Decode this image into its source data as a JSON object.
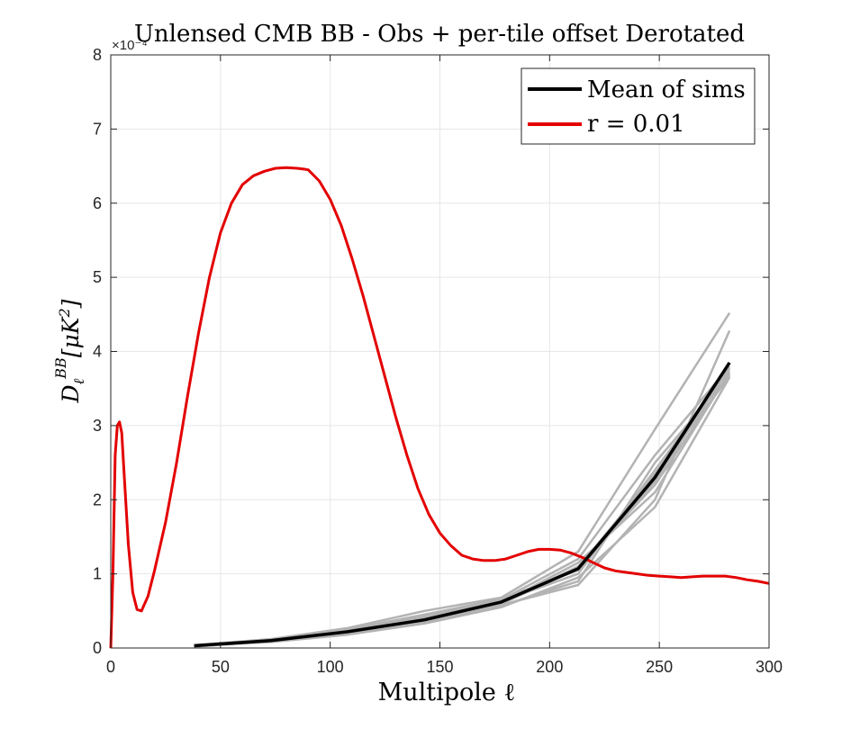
{
  "chart_data": {
    "type": "line",
    "title": "Unlensed CMB BB - Obs + per-tile offset Derotated",
    "xlabel": "Multipole ℓ",
    "ylabel": "Dℓ^BB [μK²]",
    "ylabel_main": "D",
    "ylabel_sub": "ℓ",
    "ylabel_sup": "BB",
    "ylabel_unit": "[μK",
    "ylabel_unit_sup": "2",
    "ylabel_unit_close": "]",
    "y_scale_label": "×10⁻⁴",
    "xlim": [
      0,
      300
    ],
    "ylim": [
      0,
      8
    ],
    "x_ticks": [
      "0",
      "50",
      "100",
      "150",
      "200",
      "250",
      "300"
    ],
    "y_ticks": [
      "0",
      "1",
      "2",
      "3",
      "4",
      "5",
      "6",
      "7",
      "8"
    ],
    "grid": true,
    "legend_position": "top-right",
    "colors": {
      "mean": "#000000",
      "theory": "#e30000",
      "sims": "#b3b3b3"
    },
    "legend": [
      {
        "label": "Mean of sims",
        "color": "#000000"
      },
      {
        "label": "r = 0.01",
        "color": "#e30000"
      }
    ],
    "series": [
      {
        "name": "Mean of sims",
        "x": [
          38,
          73,
          108,
          143,
          178,
          213,
          248,
          282
        ],
        "y": [
          0.03,
          0.1,
          0.22,
          0.38,
          0.62,
          1.07,
          2.3,
          3.85
        ]
      },
      {
        "name": "r = 0.01",
        "x": [
          0,
          1,
          2,
          3,
          4,
          5,
          6,
          8,
          10,
          12,
          14,
          17,
          20,
          25,
          30,
          35,
          40,
          45,
          50,
          55,
          60,
          65,
          70,
          75,
          80,
          85,
          88,
          90,
          95,
          100,
          105,
          110,
          115,
          120,
          125,
          130,
          135,
          140,
          145,
          150,
          155,
          160,
          165,
          170,
          175,
          180,
          185,
          190,
          195,
          200,
          205,
          210,
          215,
          220,
          225,
          230,
          235,
          240,
          245,
          250,
          255,
          260,
          265,
          270,
          275,
          280,
          285,
          290,
          295,
          300
        ],
        "y": [
          0.0,
          1.0,
          2.6,
          3.0,
          3.05,
          2.9,
          2.4,
          1.4,
          0.75,
          0.52,
          0.5,
          0.7,
          1.05,
          1.7,
          2.5,
          3.4,
          4.25,
          5.0,
          5.6,
          6.0,
          6.25,
          6.37,
          6.43,
          6.47,
          6.48,
          6.47,
          6.46,
          6.45,
          6.3,
          6.05,
          5.7,
          5.25,
          4.75,
          4.2,
          3.65,
          3.1,
          2.6,
          2.15,
          1.8,
          1.55,
          1.38,
          1.25,
          1.2,
          1.18,
          1.18,
          1.2,
          1.25,
          1.3,
          1.33,
          1.33,
          1.32,
          1.28,
          1.22,
          1.15,
          1.08,
          1.04,
          1.02,
          1.0,
          0.98,
          0.97,
          0.96,
          0.95,
          0.96,
          0.97,
          0.97,
          0.97,
          0.95,
          0.92,
          0.9,
          0.87
        ]
      }
    ],
    "sim_realizations": {
      "x": [
        38,
        73,
        108,
        143,
        178,
        213,
        248,
        282
      ],
      "y": [
        [
          0.03,
          0.12,
          0.27,
          0.5,
          0.68,
          1.3,
          2.95,
          4.52
        ],
        [
          0.02,
          0.09,
          0.2,
          0.35,
          0.58,
          0.85,
          2.0,
          4.28
        ],
        [
          0.04,
          0.11,
          0.24,
          0.42,
          0.65,
          1.2,
          2.6,
          3.8
        ],
        [
          0.03,
          0.08,
          0.18,
          0.33,
          0.55,
          0.95,
          1.9,
          3.65
        ],
        [
          0.02,
          0.1,
          0.22,
          0.4,
          0.6,
          1.1,
          2.2,
          3.7
        ],
        [
          0.03,
          0.1,
          0.23,
          0.37,
          0.63,
          1.0,
          2.4,
          3.75
        ],
        [
          0.03,
          0.11,
          0.21,
          0.39,
          0.61,
          1.15,
          2.1,
          3.72
        ],
        [
          0.02,
          0.09,
          0.19,
          0.36,
          0.57,
          0.9,
          2.5,
          3.68
        ],
        [
          0.04,
          0.12,
          0.25,
          0.45,
          0.66,
          1.05,
          2.25,
          3.78
        ],
        [
          0.03,
          0.1,
          0.2,
          0.34,
          0.59,
          1.08,
          2.35,
          3.66
        ]
      ]
    }
  }
}
